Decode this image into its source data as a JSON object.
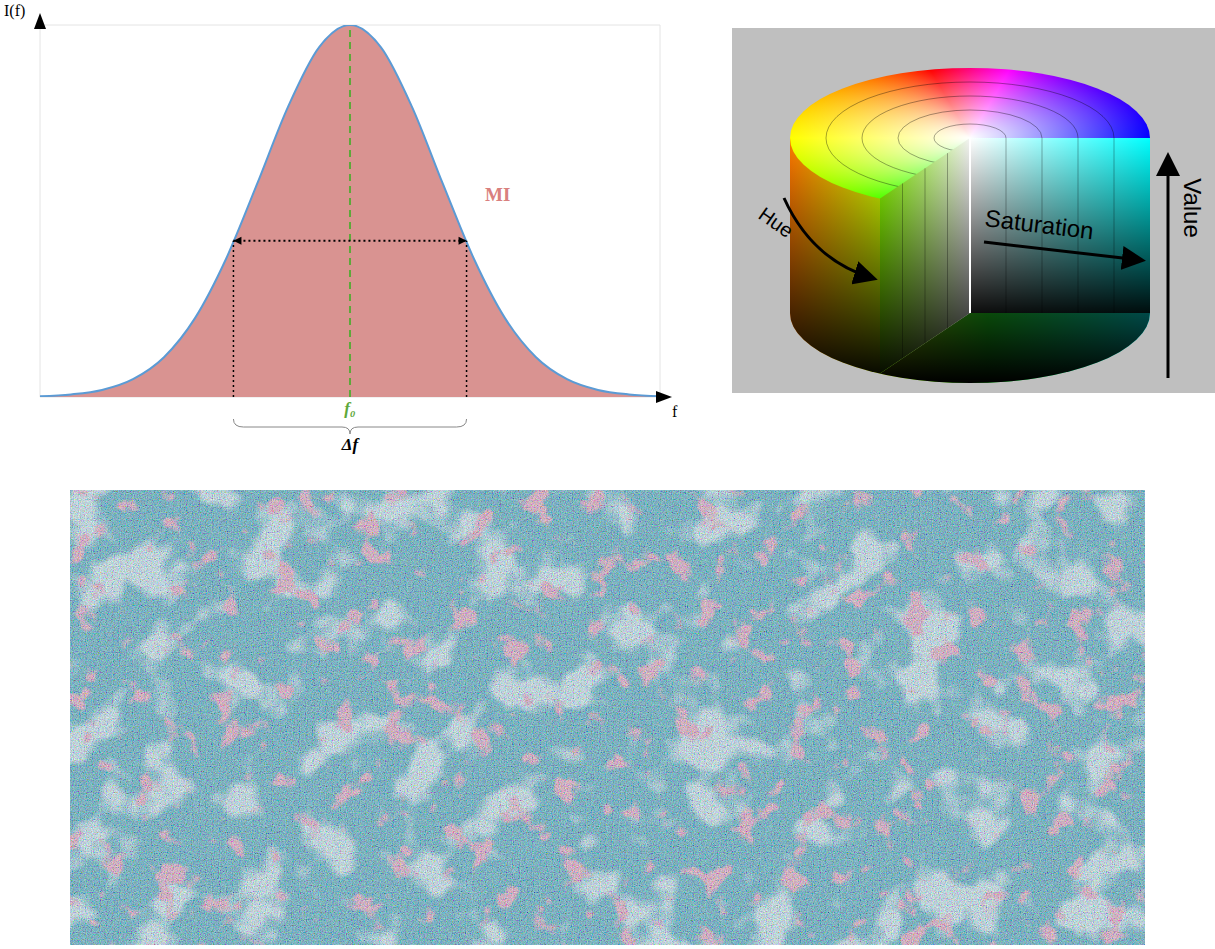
{
  "chart_data": {
    "type": "area",
    "y_label": "I(f)",
    "x_label": "f",
    "center_label": "f₀",
    "width_label": "Δf",
    "x": [
      0,
      5,
      10,
      15,
      20,
      25,
      30,
      35,
      40,
      45,
      50,
      55,
      60,
      65,
      70,
      75,
      80,
      85,
      90,
      95,
      100
    ],
    "series": [
      {
        "name": "MI",
        "color": "#d99391",
        "values": [
          0.2,
          0.7,
          1.9,
          4.8,
          10.7,
          21.2,
          37.1,
          57.2,
          78.0,
          94.0,
          100,
          94.0,
          78.0,
          57.2,
          37.1,
          21.2,
          10.7,
          4.8,
          1.9,
          0.7,
          0.2
        ]
      }
    ],
    "center": 50,
    "width_range": [
      31.2,
      68.8
    ],
    "width_level": 42,
    "xlim": [
      0,
      100
    ],
    "ylim": [
      0,
      100
    ],
    "xticks": [
      0,
      10,
      20,
      30,
      40,
      50,
      60,
      70,
      80,
      90,
      100
    ],
    "yticks": [
      0,
      14,
      28,
      42,
      56,
      70,
      84,
      98
    ],
    "grid": true,
    "tick_labels": false
  },
  "hsv_diagram": {
    "labels": {
      "hue": "Hue",
      "saturation": "Saturation",
      "value": "Value"
    }
  }
}
